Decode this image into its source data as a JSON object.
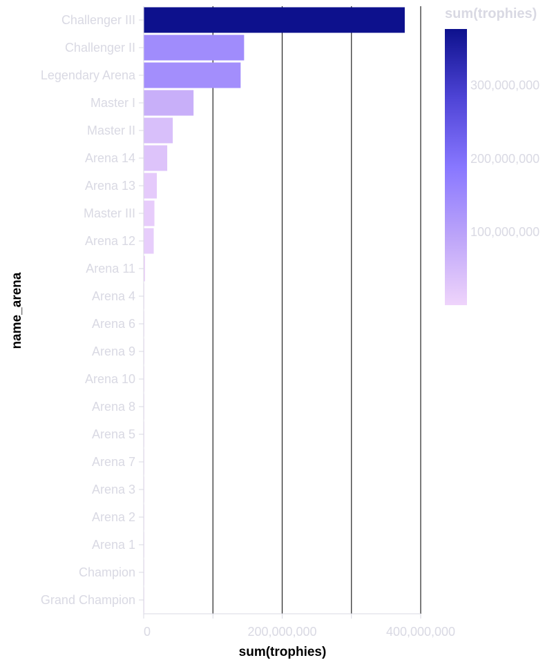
{
  "chart_data": {
    "type": "bar",
    "orientation": "horizontal",
    "title": "",
    "xlabel": "sum(trophies)",
    "ylabel": "name_arena",
    "xlim": [
      0,
      400000000
    ],
    "x_ticks": [
      0,
      100000000,
      200000000,
      300000000,
      400000000
    ],
    "x_tick_labels": [
      "0",
      "",
      "200,000,000",
      "",
      "400,000,000"
    ],
    "grid": true,
    "categories": [
      "Challenger III",
      "Challenger II",
      "Legendary Arena",
      "Master I",
      "Master II",
      "Arena 14",
      "Arena 13",
      "Master III",
      "Arena 12",
      "Arena 11",
      "Arena 4",
      "Arena 6",
      "Arena 9",
      "Arena 10",
      "Arena 8",
      "Arena 5",
      "Arena 7",
      "Arena 3",
      "Arena 2",
      "Arena 1",
      "Champion",
      "Grand Champion"
    ],
    "values": [
      377000000,
      145000000,
      140000000,
      72000000,
      42000000,
      34000000,
      19000000,
      15500000,
      14500000,
      2000000,
      700000,
      600000,
      550000,
      500000,
      450000,
      400000,
      350000,
      300000,
      250000,
      200000,
      100000,
      50000
    ],
    "legend": {
      "title": "sum(trophies)",
      "placement": "top-right",
      "type": "gradient",
      "min": 0,
      "max": 377000000,
      "labels": [
        "100,000,000",
        "200,000,000",
        "300,000,000"
      ],
      "label_values": [
        100000000,
        200000000,
        300000000
      ],
      "colors": [
        "#efd4fb",
        "#bca4f9",
        "#8877ff",
        "#4e44d6",
        "#0d118d"
      ]
    },
    "colors": {
      "tick_text": "#d9d9e3",
      "axis_title": "#000000",
      "gridline": "#222222",
      "axis_line": "#d9d9e3"
    }
  }
}
